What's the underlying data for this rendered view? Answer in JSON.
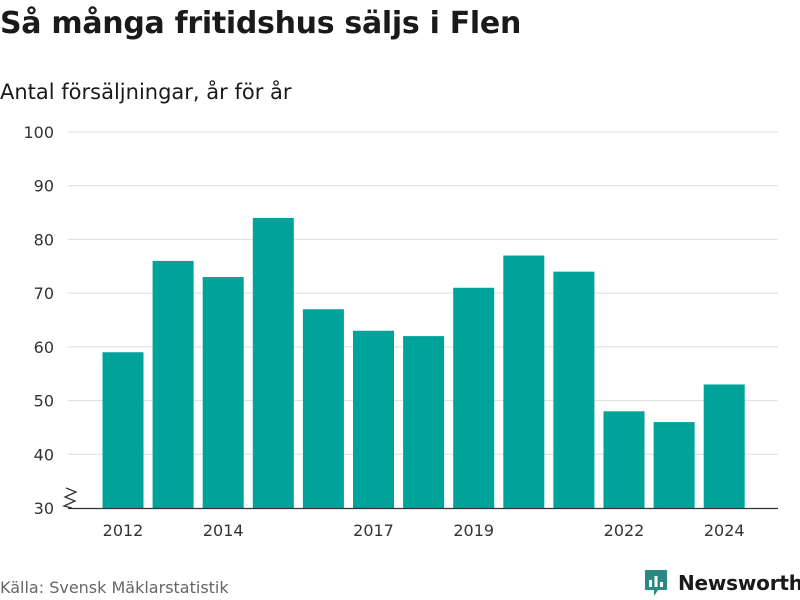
{
  "header": {
    "title": "Så många fritidshus säljs i Flen",
    "subtitle": "Antal försäljningar, år för år"
  },
  "footer": {
    "source": "Källa: Svensk Mäklarstatistik",
    "brand": "Newsworthy"
  },
  "colors": {
    "bar": "#00a39a",
    "grid": "#dddddd",
    "axis": "#333333",
    "brand": "#2a8a83"
  },
  "icons": {
    "axis_break": "axis-break-icon",
    "brand_logo": "newsworthy-logo-icon"
  },
  "chart_data": {
    "type": "bar",
    "categories": [
      "2012",
      "2013",
      "2014",
      "2015",
      "2016",
      "2017",
      "2018",
      "2019",
      "2020",
      "2021",
      "2022",
      "2023",
      "2024"
    ],
    "values": [
      59,
      76,
      73,
      84,
      67,
      63,
      62,
      71,
      77,
      74,
      48,
      46,
      53
    ],
    "x_tick_labels": [
      "2012",
      "2014",
      "2017",
      "2019",
      "2022",
      "2024"
    ],
    "y_ticks": [
      30,
      40,
      50,
      60,
      70,
      80,
      90,
      100
    ],
    "ylim": [
      30,
      100
    ],
    "y_axis_break": true,
    "grid": true,
    "xlabel": "",
    "ylabel": ""
  }
}
